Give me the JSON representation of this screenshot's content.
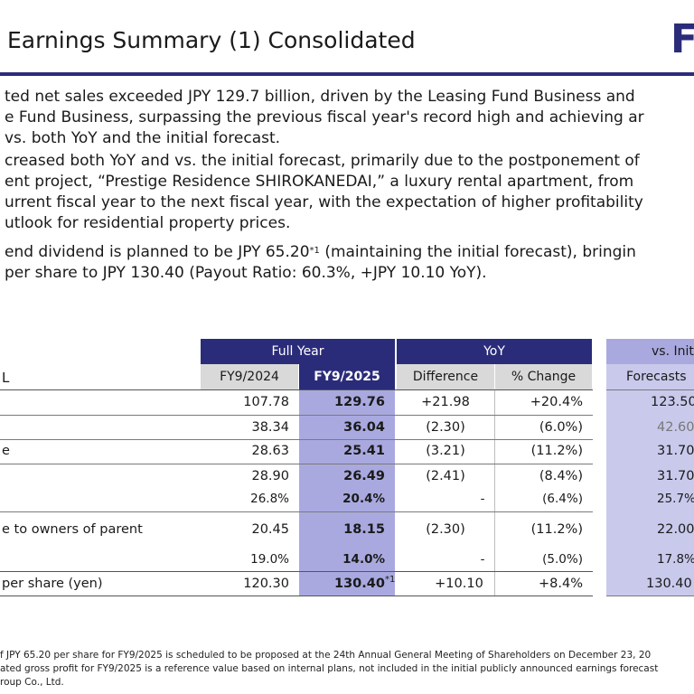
{
  "title": "Earnings Summary (1) Consolidated",
  "logo_text": "F",
  "paragraphs": {
    "p1_l1": "ted net sales exceeded JPY 129.7 billion, driven by the Leasing Fund Business and",
    "p1_l2": "e Fund Business, surpassing the previous fiscal year's record high and achieving ar",
    "p1_l3": "vs. both YoY and the initial forecast.",
    "p2_l1": "creased both YoY and vs. the initial forecast, primarily due to the postponement of",
    "p2_l2": "ent project, “Prestige Residence SHIROKANEDAI,” a luxury rental apartment, from",
    "p2_l3": "urrent fiscal year to the next fiscal year, with the expectation of higher profitability",
    "p2_l4": "utlook for residential property prices.",
    "p3_l1a": "end dividend is planned to be JPY 65.20",
    "p3_l1_sup": "*1",
    "p3_l1b": " (maintaining the initial forecast), bringin",
    "p3_l2": "per share to JPY 130.40 (Payout Ratio: 60.3%, +JPY 10.10 YoY)."
  },
  "table": {
    "group_headers": {
      "full_year": "Full Year",
      "yoy": "YoY",
      "vs_initial": "vs. Init"
    },
    "row_label_header": "L",
    "sub_headers": {
      "fy2024": "FY9/2024",
      "fy2025": "FY9/2025",
      "difference": "Difference",
      "pct_change": "% Change",
      "forecasts": "Forecasts"
    },
    "rows": [
      {
        "label": "",
        "fy2024": "107.78",
        "fy2025": "129.76",
        "diff": "+21.98",
        "pct": "+20.4%",
        "forecast": "123.50"
      },
      {
        "label": "",
        "fy2024": "38.34",
        "fy2025": "36.04",
        "diff": "(2.30)",
        "pct": "(6.0%)",
        "forecast": "42.60"
      },
      {
        "label": "e",
        "fy2024": "28.63",
        "fy2025": "25.41",
        "diff": "(3.21)",
        "pct": "(11.2%)",
        "forecast": "31.70"
      },
      {
        "label": "",
        "fy2024": "28.90",
        "fy2025": "26.49",
        "diff": "(2.41)",
        "pct": "(8.4%)",
        "forecast": "31.70"
      },
      {
        "label": "",
        "fy2024": "26.8%",
        "fy2025": "20.4%",
        "diff": "-",
        "pct": "(6.4%)",
        "forecast": "25.7%"
      },
      {
        "label": "e to owners of parent",
        "fy2024": "20.45",
        "fy2025": "18.15",
        "diff": "(2.30)",
        "pct": "(11.2%)",
        "forecast": "22.00"
      },
      {
        "label": "",
        "fy2024": "19.0%",
        "fy2025": "14.0%",
        "diff": "-",
        "pct": "(5.0%)",
        "forecast": "17.8%"
      },
      {
        "label": "per share (yen)",
        "fy2024": "120.30",
        "fy2025": "130.40",
        "fy2025_sup": "*1",
        "diff": "+10.10",
        "pct": "+8.4%",
        "forecast": "130.40"
      }
    ]
  },
  "footnotes": {
    "f1": "f JPY 65.20 per share for FY9/2025 is scheduled to be proposed at the 24th Annual General Meeting of Shareholders on December 23, 20",
    "f2": "ated gross profit for FY9/2025 is a reference value based on internal plans, not included in the initial publicly announced earnings forecast",
    "f3": "roup Co., Ltd."
  },
  "colors": {
    "navy": "#2a2c7a",
    "highlight": "#a9a9e0",
    "highlight_light": "#c9c9ec",
    "subheader_gray": "#d9d9d9"
  }
}
